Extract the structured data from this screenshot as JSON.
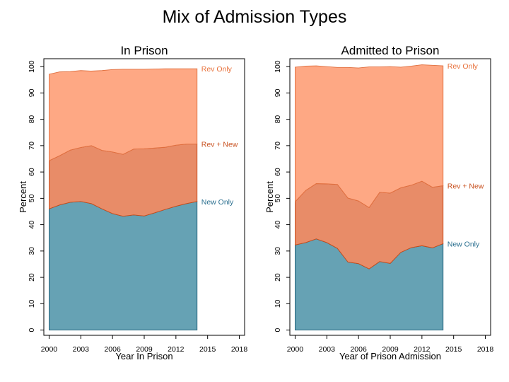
{
  "title": "Mix of Admission Types",
  "colors": {
    "new_only": "#66a2b4",
    "rev_new": "#e88c68",
    "rev_only": "#fea884",
    "rev_only_text": "#e8703a",
    "rev_new_text": "#c8501e",
    "new_only_text": "#2a6f8f",
    "rev_only_line": "#e07040",
    "rev_new_line": "#c84a18",
    "new_only_line": "#1f5f78"
  },
  "chart_data": [
    {
      "type": "area",
      "title": "In Prison",
      "xlabel": "Year In Prison",
      "ylabel": "Percent",
      "xlim": [
        1999.5,
        2018.5
      ],
      "ylim": [
        -2,
        103
      ],
      "x_ticks": [
        2000,
        2003,
        2006,
        2009,
        2012,
        2015,
        2018
      ],
      "y_ticks": [
        0,
        10,
        20,
        30,
        40,
        50,
        60,
        70,
        80,
        90,
        100
      ],
      "x": [
        2000,
        2001,
        2002,
        2003,
        2004,
        2005,
        2006,
        2007,
        2008,
        2009,
        2010,
        2011,
        2012,
        2013,
        2014
      ],
      "stacked": true,
      "series": [
        {
          "name": "New Only",
          "values": [
            46.0,
            47.5,
            48.5,
            48.8,
            48.0,
            46.0,
            44.2,
            43.2,
            43.7,
            43.3,
            44.5,
            45.8,
            47.0,
            48.0,
            48.8
          ]
        },
        {
          "name": "Rev + New",
          "values": [
            18.3,
            18.7,
            19.8,
            20.5,
            22.0,
            22.2,
            23.4,
            23.5,
            25.0,
            25.5,
            24.6,
            23.6,
            23.2,
            22.6,
            21.8
          ]
        },
        {
          "name": "Rev Only",
          "values": [
            32.8,
            31.8,
            29.8,
            29.2,
            28.3,
            30.3,
            31.3,
            32.3,
            30.3,
            30.2,
            30.0,
            29.8,
            29.0,
            28.6,
            28.6
          ]
        }
      ],
      "series_labels_text": [
        "Rev Only",
        "Rev + New",
        "New Only"
      ]
    },
    {
      "type": "area",
      "title": "Admitted to Prison",
      "xlabel": "Year of Prison Admission",
      "ylabel": "Percent",
      "xlim": [
        1999.5,
        2018.5
      ],
      "ylim": [
        -2,
        103
      ],
      "x_ticks": [
        2000,
        2003,
        2006,
        2009,
        2012,
        2015,
        2018
      ],
      "y_ticks": [
        0,
        10,
        20,
        30,
        40,
        50,
        60,
        70,
        80,
        90,
        100
      ],
      "x": [
        2000,
        2001,
        2002,
        2003,
        2004,
        2005,
        2006,
        2007,
        2008,
        2009,
        2010,
        2011,
        2012,
        2013,
        2014
      ],
      "stacked": true,
      "series": [
        {
          "name": "New Only",
          "values": [
            32.3,
            33.2,
            34.6,
            33.2,
            31.0,
            25.8,
            25.2,
            23.2,
            26.0,
            25.3,
            29.5,
            31.3,
            32.0,
            31.2,
            32.8
          ]
        },
        {
          "name": "Rev + New",
          "values": [
            16.4,
            19.8,
            21.0,
            22.3,
            24.3,
            24.3,
            23.8,
            23.3,
            26.3,
            26.7,
            24.5,
            23.7,
            24.5,
            23.0,
            22.0
          ]
        },
        {
          "name": "Rev Only",
          "values": [
            51.1,
            47.2,
            44.7,
            44.5,
            44.4,
            49.6,
            50.5,
            53.4,
            47.6,
            48.0,
            45.8,
            45.2,
            44.2,
            46.3,
            45.5
          ]
        }
      ],
      "series_labels_text": [
        "Rev Only",
        "Rev + New",
        "New Only"
      ]
    }
  ]
}
